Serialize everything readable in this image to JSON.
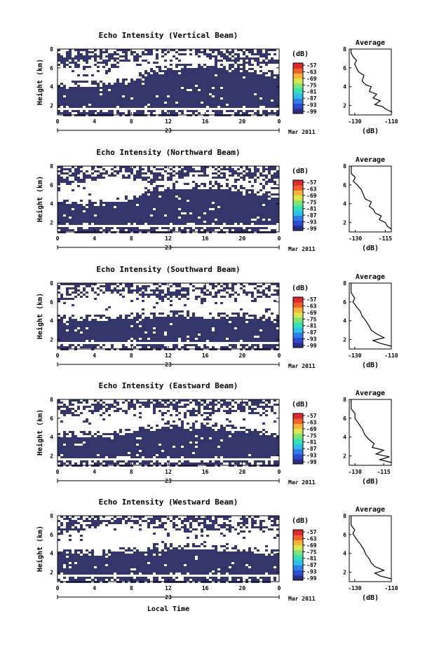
{
  "colors": {
    "cell": "#33356b",
    "colorbar": [
      "#2b2d86",
      "#2e4bd0",
      "#2f7de6",
      "#2ec0e6",
      "#35e0b8",
      "#7fe37a",
      "#d9e650",
      "#f7b43a",
      "#f0602e",
      "#d92b2b"
    ]
  },
  "panel_colorbar_unit": "(dB)",
  "colorbar_labels": [
    "-57",
    "-63",
    "-69",
    "-75",
    "-81",
    "-87",
    "-93",
    "-99"
  ],
  "x_axis": {
    "ticks": [
      "0",
      "4",
      "8",
      "12",
      "16",
      "20",
      "0"
    ],
    "date_label": "23",
    "date_right": "Mar 2011",
    "label": "Local Time"
  },
  "y_ticks": [
    "2",
    "4",
    "6",
    "8"
  ],
  "height_label": "Height (km)",
  "average_title": "Average",
  "average_unit": "(dB)",
  "chart_data": [
    {
      "type": "heatmap",
      "title": "Echo Intensity (Vertical Beam)",
      "ylabel": "Height (km)",
      "xlabel": "",
      "xlim": [
        0,
        24
      ],
      "ylim": [
        1,
        8
      ],
      "colorbar": {
        "unit": "(dB)",
        "ticks": [
          -57,
          -63,
          -69,
          -75,
          -81,
          -87,
          -93,
          -99
        ]
      },
      "layers": {
        "low_top": [
          4.0,
          4.1,
          4.2,
          4.4,
          4.7,
          5.5,
          5.9,
          6.0,
          6.0,
          6.0,
          5.8,
          5.3,
          4.8
        ],
        "noise_base": [
          6.3,
          6.0,
          6.0,
          6.4,
          7.0,
          7.3,
          7.6,
          7.5,
          7.0,
          6.7,
          6.5,
          6.4,
          6.5
        ]
      },
      "average": {
        "title": "Average",
        "xticks": [
          "-130",
          "-110"
        ],
        "xlim": [
          -133,
          -110
        ],
        "ylim": [
          1,
          8
        ],
        "yticks": [
          "2",
          "4",
          "6",
          "8"
        ],
        "profile": [
          [
            -109.5,
            1.3
          ],
          [
            -113,
            1.6
          ],
          [
            -115,
            1.9
          ],
          [
            -119,
            2.1
          ],
          [
            -116,
            2.5
          ],
          [
            -120,
            2.8
          ],
          [
            -118,
            3.2
          ],
          [
            -122,
            3.5
          ],
          [
            -121,
            4.0
          ],
          [
            -124,
            4.2
          ],
          [
            -126,
            4.6
          ],
          [
            -125,
            5.2
          ],
          [
            -128,
            5.6
          ],
          [
            -129,
            6.0
          ],
          [
            -130,
            6.4
          ],
          [
            -129,
            6.8
          ],
          [
            -131,
            7.2
          ],
          [
            -132,
            7.6
          ],
          [
            -132,
            8.0
          ]
        ]
      }
    },
    {
      "type": "heatmap",
      "title": "Echo Intensity (Northward Beam)",
      "ylabel": "Height (km)",
      "xlabel": "",
      "xlim": [
        0,
        24
      ],
      "ylim": [
        1,
        8
      ],
      "colorbar": {
        "unit": "(dB)",
        "ticks": [
          -57,
          -63,
          -69,
          -75,
          -81,
          -87,
          -93,
          -99
        ]
      },
      "layers": {
        "low_top": [
          4.1,
          4.0,
          3.9,
          4.0,
          4.6,
          5.4,
          5.6,
          5.7,
          5.7,
          5.6,
          5.4,
          5.0,
          4.5
        ],
        "noise_base": [
          6.0,
          6.3,
          6.6,
          7.0,
          6.8,
          6.3,
          6.6,
          7.0,
          7.0,
          6.5,
          6.3,
          6.2,
          6.4
        ]
      },
      "average": {
        "title": "Average",
        "xticks": [
          "-130",
          "-115"
        ],
        "xlim": [
          -133,
          -112
        ],
        "ylim": [
          1,
          8
        ],
        "yticks": [
          "2",
          "4",
          "6",
          "8"
        ],
        "profile": [
          [
            -112,
            1.3
          ],
          [
            -114,
            1.6
          ],
          [
            -115,
            2.0
          ],
          [
            -118,
            2.3
          ],
          [
            -117,
            2.7
          ],
          [
            -120,
            3.0
          ],
          [
            -121,
            3.4
          ],
          [
            -123,
            3.7
          ],
          [
            -122,
            4.2
          ],
          [
            -125,
            4.5
          ],
          [
            -126,
            5.0
          ],
          [
            -127,
            5.5
          ],
          [
            -129,
            6.0
          ],
          [
            -131,
            6.4
          ],
          [
            -130,
            6.8
          ],
          [
            -132,
            7.2
          ],
          [
            -132,
            8.0
          ]
        ]
      }
    },
    {
      "type": "heatmap",
      "title": "Echo Intensity (Southward Beam)",
      "ylabel": "Height (km)",
      "xlabel": "",
      "xlim": [
        0,
        24
      ],
      "ylim": [
        1,
        8
      ],
      "colorbar": {
        "unit": "(dB)",
        "ticks": [
          -57,
          -63,
          -69,
          -75,
          -81,
          -87,
          -93,
          -99
        ]
      },
      "layers": {
        "low_top": [
          4.1,
          4.1,
          4.1,
          4.2,
          4.3,
          4.4,
          4.5,
          4.5,
          4.4,
          4.4,
          4.3,
          4.2,
          4.2
        ],
        "noise_base": [
          6.2,
          6.5,
          7.1,
          7.3,
          7.0,
          6.5,
          6.3,
          6.3,
          6.5,
          6.6,
          6.8,
          6.5,
          6.7
        ]
      },
      "average": {
        "title": "Average",
        "xticks": [
          "-130",
          "-110"
        ],
        "xlim": [
          -133,
          -110
        ],
        "ylim": [
          1,
          8
        ],
        "yticks": [
          "2",
          "4",
          "6",
          "8"
        ],
        "profile": [
          [
            -110,
            1.3
          ],
          [
            -116,
            1.6
          ],
          [
            -120,
            1.9
          ],
          [
            -114,
            2.2
          ],
          [
            -118,
            2.6
          ],
          [
            -121,
            3.0
          ],
          [
            -122,
            3.4
          ],
          [
            -124,
            4.0
          ],
          [
            -126,
            4.5
          ],
          [
            -127,
            5.0
          ],
          [
            -129,
            5.5
          ],
          [
            -131,
            6.0
          ],
          [
            -130,
            6.4
          ],
          [
            -132,
            7.0
          ],
          [
            -132,
            8.0
          ]
        ]
      }
    },
    {
      "type": "heatmap",
      "title": "Echo Intensity (Eastward Beam)",
      "ylabel": "Height (km)",
      "xlabel": "",
      "xlim": [
        0,
        24
      ],
      "ylim": [
        1,
        8
      ],
      "colorbar": {
        "unit": "(dB)",
        "ticks": [
          -57,
          -63,
          -69,
          -75,
          -81,
          -87,
          -93,
          -99
        ]
      },
      "layers": {
        "low_top": [
          4.2,
          4.1,
          4.2,
          4.2,
          4.5,
          4.8,
          5.0,
          5.0,
          5.0,
          4.9,
          4.6,
          4.4,
          4.3
        ],
        "noise_base": [
          6.5,
          6.3,
          6.7,
          7.0,
          7.1,
          6.6,
          6.4,
          6.3,
          6.6,
          6.7,
          6.6,
          6.4,
          6.5
        ]
      },
      "average": {
        "title": "Average",
        "xticks": [
          "-130",
          "-115"
        ],
        "xlim": [
          -133,
          -111
        ],
        "ylim": [
          1,
          8
        ],
        "yticks": [
          "2",
          "4",
          "6",
          "8"
        ],
        "profile": [
          [
            -111,
            1.3
          ],
          [
            -117,
            1.6
          ],
          [
            -112,
            1.9
          ],
          [
            -119,
            2.2
          ],
          [
            -115,
            2.6
          ],
          [
            -121,
            2.9
          ],
          [
            -120,
            3.3
          ],
          [
            -123,
            3.8
          ],
          [
            -125,
            4.3
          ],
          [
            -126,
            4.8
          ],
          [
            -128,
            5.4
          ],
          [
            -130,
            6.0
          ],
          [
            -130,
            6.5
          ],
          [
            -132,
            7.0
          ],
          [
            -132,
            8.0
          ]
        ]
      }
    },
    {
      "type": "heatmap",
      "title": "Echo Intensity (Westward Beam)",
      "ylabel": "Height (km)",
      "xlabel": "Local Time",
      "xlim": [
        0,
        24
      ],
      "ylim": [
        1,
        8
      ],
      "colorbar": {
        "unit": "(dB)",
        "ticks": [
          -57,
          -63,
          -69,
          -75,
          -81,
          -87,
          -93,
          -99
        ]
      },
      "layers": {
        "low_top": [
          4.0,
          4.0,
          3.9,
          4.0,
          4.2,
          4.5,
          4.6,
          4.6,
          4.5,
          4.4,
          4.2,
          4.0,
          3.9
        ],
        "noise_base": [
          6.1,
          6.4,
          7.0,
          7.3,
          7.2,
          6.8,
          6.5,
          6.4,
          6.6,
          6.6,
          6.8,
          6.6,
          6.7
        ]
      },
      "average": {
        "title": "Average",
        "xticks": [
          "-130",
          "-110"
        ],
        "xlim": [
          -133,
          -110
        ],
        "ylim": [
          1,
          8
        ],
        "yticks": [
          "2",
          "4",
          "6",
          "8"
        ],
        "profile": [
          [
            -110,
            1.3
          ],
          [
            -116,
            1.6
          ],
          [
            -119,
            1.9
          ],
          [
            -114,
            2.2
          ],
          [
            -119,
            2.6
          ],
          [
            -121,
            3.0
          ],
          [
            -122,
            3.4
          ],
          [
            -124,
            3.9
          ],
          [
            -125,
            4.4
          ],
          [
            -127,
            5.0
          ],
          [
            -129,
            5.5
          ],
          [
            -131,
            6.1
          ],
          [
            -130,
            6.5
          ],
          [
            -132,
            7.0
          ],
          [
            -132,
            8.0
          ]
        ]
      }
    }
  ]
}
